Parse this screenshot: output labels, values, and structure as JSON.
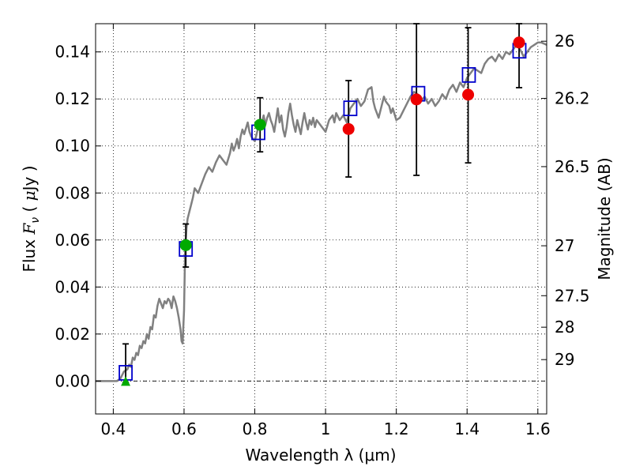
{
  "chart_data": {
    "type": "scatter",
    "xlabel": "Wavelength  λ (μm)",
    "ylabel_left": {
      "prefix": "Flux ",
      "symbol": "F",
      "subscript": "ν",
      "mid": " ( ",
      "unit_symbol": "μ",
      "unit_rest": "Jy )"
    },
    "ylabel_right": "Magnitude (AB)",
    "xlim": [
      0.35,
      1.625
    ],
    "ylim": [
      -0.014,
      0.152
    ],
    "grid": true,
    "x_ticks": [
      {
        "value": 0.4,
        "label": "0.4"
      },
      {
        "value": 0.6,
        "label": "0.6"
      },
      {
        "value": 0.8,
        "label": "0.8"
      },
      {
        "value": 1.0,
        "label": "1"
      },
      {
        "value": 1.2,
        "label": "1.2"
      },
      {
        "value": 1.4,
        "label": "1.4"
      },
      {
        "value": 1.6,
        "label": "1.6"
      }
    ],
    "y_ticks": [
      {
        "value": 0.0,
        "label": "0.00"
      },
      {
        "value": 0.02,
        "label": "0.02"
      },
      {
        "value": 0.04,
        "label": "0.04"
      },
      {
        "value": 0.06,
        "label": "0.06"
      },
      {
        "value": 0.08,
        "label": "0.08"
      },
      {
        "value": 0.1,
        "label": "0.10"
      },
      {
        "value": 0.12,
        "label": "0.12"
      },
      {
        "value": 0.14,
        "label": "0.14"
      }
    ],
    "mag_ticks": [
      {
        "mag": 26.0,
        "label": "26"
      },
      {
        "mag": 26.2,
        "label": "26.2"
      },
      {
        "mag": 26.5,
        "label": "26.5"
      },
      {
        "mag": 27.0,
        "label": "27"
      },
      {
        "mag": 27.5,
        "label": "27.5"
      },
      {
        "mag": 28.0,
        "label": "28"
      },
      {
        "mag": 29.0,
        "label": "29"
      }
    ],
    "series": [
      {
        "name": "model spectrum",
        "kind": "line",
        "color": "#808080",
        "points": [
          [
            0.35,
            0.0
          ],
          [
            0.41,
            0.0
          ],
          [
            0.42,
            0.001
          ],
          [
            0.43,
            0.004
          ],
          [
            0.44,
            0.005
          ],
          [
            0.445,
            0.007
          ],
          [
            0.45,
            0.006
          ],
          [
            0.455,
            0.01
          ],
          [
            0.46,
            0.009
          ],
          [
            0.465,
            0.012
          ],
          [
            0.47,
            0.011
          ],
          [
            0.475,
            0.015
          ],
          [
            0.48,
            0.014
          ],
          [
            0.485,
            0.017
          ],
          [
            0.49,
            0.016
          ],
          [
            0.495,
            0.02
          ],
          [
            0.5,
            0.018
          ],
          [
            0.505,
            0.023
          ],
          [
            0.51,
            0.022
          ],
          [
            0.515,
            0.028
          ],
          [
            0.52,
            0.027
          ],
          [
            0.525,
            0.032
          ],
          [
            0.53,
            0.035
          ],
          [
            0.535,
            0.033
          ],
          [
            0.54,
            0.031
          ],
          [
            0.545,
            0.034
          ],
          [
            0.55,
            0.033
          ],
          [
            0.555,
            0.035
          ],
          [
            0.56,
            0.034
          ],
          [
            0.565,
            0.031
          ],
          [
            0.57,
            0.036
          ],
          [
            0.575,
            0.034
          ],
          [
            0.58,
            0.031
          ],
          [
            0.585,
            0.027
          ],
          [
            0.59,
            0.022
          ],
          [
            0.593,
            0.017
          ],
          [
            0.596,
            0.016
          ],
          [
            0.6,
            0.03
          ],
          [
            0.603,
            0.055
          ],
          [
            0.607,
            0.065
          ],
          [
            0.61,
            0.069
          ],
          [
            0.615,
            0.072
          ],
          [
            0.62,
            0.075
          ],
          [
            0.625,
            0.078
          ],
          [
            0.63,
            0.082
          ],
          [
            0.64,
            0.08
          ],
          [
            0.65,
            0.084
          ],
          [
            0.66,
            0.088
          ],
          [
            0.67,
            0.091
          ],
          [
            0.68,
            0.089
          ],
          [
            0.69,
            0.093
          ],
          [
            0.7,
            0.096
          ],
          [
            0.71,
            0.094
          ],
          [
            0.72,
            0.092
          ],
          [
            0.73,
            0.097
          ],
          [
            0.735,
            0.101
          ],
          [
            0.74,
            0.098
          ],
          [
            0.745,
            0.1
          ],
          [
            0.75,
            0.103
          ],
          [
            0.755,
            0.099
          ],
          [
            0.76,
            0.104
          ],
          [
            0.765,
            0.107
          ],
          [
            0.77,
            0.105
          ],
          [
            0.78,
            0.11
          ],
          [
            0.785,
            0.106
          ],
          [
            0.79,
            0.104
          ],
          [
            0.8,
            0.102
          ],
          [
            0.805,
            0.105
          ],
          [
            0.81,
            0.108
          ],
          [
            0.82,
            0.11
          ],
          [
            0.825,
            0.113
          ],
          [
            0.83,
            0.109
          ],
          [
            0.835,
            0.112
          ],
          [
            0.84,
            0.114
          ],
          [
            0.845,
            0.111
          ],
          [
            0.85,
            0.109
          ],
          [
            0.855,
            0.106
          ],
          [
            0.86,
            0.111
          ],
          [
            0.865,
            0.116
          ],
          [
            0.87,
            0.11
          ],
          [
            0.875,
            0.113
          ],
          [
            0.88,
            0.107
          ],
          [
            0.885,
            0.104
          ],
          [
            0.89,
            0.108
          ],
          [
            0.895,
            0.114
          ],
          [
            0.9,
            0.118
          ],
          [
            0.905,
            0.113
          ],
          [
            0.91,
            0.109
          ],
          [
            0.915,
            0.106
          ],
          [
            0.92,
            0.111
          ],
          [
            0.925,
            0.108
          ],
          [
            0.93,
            0.105
          ],
          [
            0.935,
            0.11
          ],
          [
            0.94,
            0.114
          ],
          [
            0.945,
            0.11
          ],
          [
            0.95,
            0.107
          ],
          [
            0.955,
            0.111
          ],
          [
            0.96,
            0.109
          ],
          [
            0.965,
            0.112
          ],
          [
            0.97,
            0.108
          ],
          [
            0.975,
            0.111
          ],
          [
            0.98,
            0.11
          ],
          [
            0.99,
            0.108
          ],
          [
            1.0,
            0.106
          ],
          [
            1.01,
            0.111
          ],
          [
            1.02,
            0.113
          ],
          [
            1.025,
            0.11
          ],
          [
            1.03,
            0.114
          ],
          [
            1.04,
            0.111
          ],
          [
            1.05,
            0.113
          ],
          [
            1.06,
            0.11
          ],
          [
            1.07,
            0.116
          ],
          [
            1.08,
            0.118
          ],
          [
            1.09,
            0.12
          ],
          [
            1.1,
            0.117
          ],
          [
            1.11,
            0.119
          ],
          [
            1.12,
            0.124
          ],
          [
            1.13,
            0.125
          ],
          [
            1.135,
            0.119
          ],
          [
            1.14,
            0.116
          ],
          [
            1.15,
            0.112
          ],
          [
            1.16,
            0.118
          ],
          [
            1.165,
            0.121
          ],
          [
            1.17,
            0.119
          ],
          [
            1.18,
            0.117
          ],
          [
            1.185,
            0.114
          ],
          [
            1.19,
            0.116
          ],
          [
            1.2,
            0.111
          ],
          [
            1.21,
            0.112
          ],
          [
            1.22,
            0.115
          ],
          [
            1.23,
            0.118
          ],
          [
            1.24,
            0.121
          ],
          [
            1.25,
            0.123
          ],
          [
            1.26,
            0.122
          ],
          [
            1.27,
            0.119
          ],
          [
            1.28,
            0.121
          ],
          [
            1.29,
            0.118
          ],
          [
            1.3,
            0.12
          ],
          [
            1.31,
            0.117
          ],
          [
            1.32,
            0.119
          ],
          [
            1.33,
            0.122
          ],
          [
            1.34,
            0.12
          ],
          [
            1.35,
            0.124
          ],
          [
            1.36,
            0.126
          ],
          [
            1.37,
            0.123
          ],
          [
            1.38,
            0.127
          ],
          [
            1.39,
            0.125
          ],
          [
            1.4,
            0.129
          ],
          [
            1.41,
            0.131
          ],
          [
            1.42,
            0.133
          ],
          [
            1.43,
            0.132
          ],
          [
            1.44,
            0.131
          ],
          [
            1.45,
            0.135
          ],
          [
            1.46,
            0.137
          ],
          [
            1.47,
            0.138
          ],
          [
            1.48,
            0.136
          ],
          [
            1.49,
            0.139
          ],
          [
            1.5,
            0.137
          ],
          [
            1.51,
            0.14
          ],
          [
            1.52,
            0.139
          ],
          [
            1.53,
            0.141
          ],
          [
            1.54,
            0.143
          ],
          [
            1.55,
            0.141
          ],
          [
            1.56,
            0.138
          ],
          [
            1.57,
            0.14
          ],
          [
            1.58,
            0.142
          ],
          [
            1.59,
            0.143
          ],
          [
            1.6,
            0.144
          ],
          [
            1.61,
            0.144
          ],
          [
            1.625,
            0.143
          ]
        ]
      },
      {
        "name": "synthetic photometry",
        "kind": "square",
        "color": "#0000cc",
        "points": [
          [
            0.435,
            0.0035
          ],
          [
            0.605,
            0.0562
          ],
          [
            0.81,
            0.1058
          ],
          [
            1.07,
            0.116
          ],
          [
            1.262,
            0.1222
          ],
          [
            1.405,
            0.1302
          ],
          [
            1.548,
            0.1405
          ]
        ]
      },
      {
        "name": "detections (error bars)",
        "kind": "errorbar",
        "color": "#000000",
        "points": [
          {
            "x": 0.435,
            "y": 0.0035,
            "ylow": -0.0005,
            "yhigh": 0.0158
          },
          {
            "x": 0.605,
            "y": 0.0578,
            "ylow": 0.0485,
            "yhigh": 0.0668
          },
          {
            "x": 0.815,
            "y": 0.109,
            "ylow": 0.0975,
            "yhigh": 0.1205
          },
          {
            "x": 1.065,
            "y": 0.1072,
            "ylow": 0.0868,
            "yhigh": 0.1278
          },
          {
            "x": 1.257,
            "y": 0.1198,
            "ylow": 0.0875,
            "yhigh": 0.152
          },
          {
            "x": 1.403,
            "y": 0.1218,
            "ylow": 0.0928,
            "yhigh": 0.1503
          },
          {
            "x": 1.547,
            "y": 0.144,
            "ylow": 0.1248,
            "yhigh": 0.152
          }
        ]
      },
      {
        "name": "green detections",
        "kind": "circle",
        "color": "#00aa00",
        "points": [
          [
            0.605,
            0.0578
          ],
          [
            0.815,
            0.109
          ]
        ]
      },
      {
        "name": "green upper limit",
        "kind": "triangle",
        "color": "#00aa00",
        "points": [
          [
            0.435,
            0.0
          ]
        ]
      },
      {
        "name": "red detections",
        "kind": "circle",
        "color": "#ee0000",
        "points": [
          [
            1.065,
            0.1072
          ],
          [
            1.257,
            0.1198
          ],
          [
            1.403,
            0.1218
          ],
          [
            1.547,
            0.144
          ]
        ]
      }
    ]
  }
}
